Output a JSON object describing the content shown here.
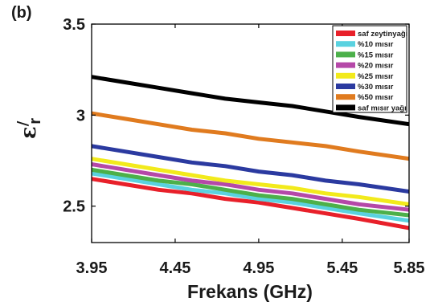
{
  "panel_label": "(b)",
  "chart_data": {
    "type": "line",
    "title": "",
    "xlabel": "Frekans (GHz)",
    "ylabel": "ε'r",
    "xlim": [
      3.95,
      5.85
    ],
    "ylim": [
      2.3,
      3.5
    ],
    "xticks": [
      3.95,
      4.45,
      4.95,
      5.45,
      5.85
    ],
    "xtick_labels": [
      "3.95",
      "4.45",
      "4.95",
      "5.45",
      "5.85"
    ],
    "yticks": [
      2.5,
      3.0,
      3.5
    ],
    "ytick_labels": [
      "2.5",
      "3",
      "3.5"
    ],
    "grid": false,
    "legend_position": "top-right",
    "x": [
      3.95,
      4.15,
      4.35,
      4.55,
      4.75,
      4.95,
      5.15,
      5.35,
      5.55,
      5.85
    ],
    "series": [
      {
        "name": "saf zeytinyağı",
        "color": "#e8202a",
        "values": [
          2.65,
          2.62,
          2.59,
          2.57,
          2.54,
          2.52,
          2.49,
          2.46,
          2.43,
          2.38
        ]
      },
      {
        "name": "%10 mısır",
        "color": "#5ad2e0",
        "values": [
          2.68,
          2.65,
          2.62,
          2.59,
          2.57,
          2.54,
          2.52,
          2.49,
          2.46,
          2.42
        ]
      },
      {
        "name": "%15 mısır",
        "color": "#4cb04a",
        "values": [
          2.7,
          2.67,
          2.64,
          2.62,
          2.59,
          2.56,
          2.54,
          2.51,
          2.48,
          2.45
        ]
      },
      {
        "name": "%20 mısır",
        "color": "#b548a8",
        "values": [
          2.73,
          2.7,
          2.67,
          2.64,
          2.62,
          2.59,
          2.57,
          2.54,
          2.51,
          2.48
        ]
      },
      {
        "name": "%25 mısır",
        "color": "#f2ea1c",
        "values": [
          2.76,
          2.73,
          2.7,
          2.67,
          2.64,
          2.62,
          2.6,
          2.57,
          2.55,
          2.51
        ]
      },
      {
        "name": "%30 mısır",
        "color": "#2b3aa0",
        "values": [
          2.83,
          2.8,
          2.77,
          2.74,
          2.72,
          2.69,
          2.67,
          2.64,
          2.62,
          2.58
        ]
      },
      {
        "name": "%50 mısır",
        "color": "#e07b1f",
        "values": [
          3.01,
          2.98,
          2.95,
          2.92,
          2.9,
          2.87,
          2.85,
          2.83,
          2.8,
          2.76
        ]
      },
      {
        "name": "saf mısır yağı",
        "color": "#000000",
        "values": [
          3.21,
          3.18,
          3.15,
          3.12,
          3.09,
          3.07,
          3.05,
          3.02,
          2.99,
          2.95
        ]
      }
    ]
  }
}
